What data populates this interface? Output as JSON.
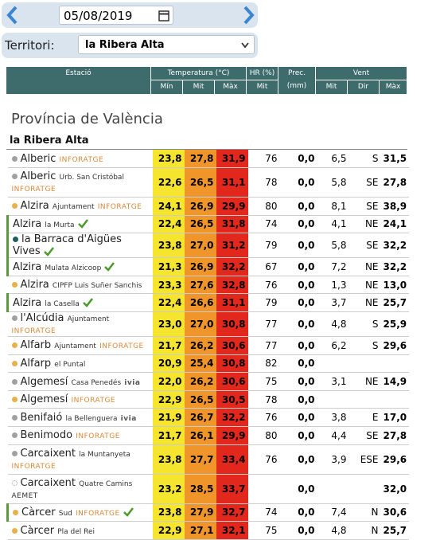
{
  "toolbar": {
    "date": "05/08/2019",
    "territory_label": "Territori:",
    "territory": "la Ribera Alta"
  },
  "table": {
    "headers": {
      "station": "Estació",
      "temperature": "Temperatura (°C)",
      "humidity": "HR (%)",
      "precipitation": "Prec. (mm)",
      "wind": "Vent"
    },
    "subheaders": {
      "temp_min": "Mín",
      "temp_mid": "Mit",
      "temp_max": "Màx",
      "hr_mid": "Mit",
      "wind_mid": "Mit",
      "wind_dir": "Dir",
      "wind_max": "Màx"
    },
    "province": "Província de València",
    "region": "la Ribera Alta",
    "rows": [
      {
        "name": "Alberic",
        "sub": null,
        "tag": "INFORATGE",
        "min": "23,8",
        "mid": "27,8",
        "max": "31,9",
        "hr": "76",
        "prec": "0,0",
        "wind": "6,5",
        "dir": "S",
        "gust": "31,5",
        "dot": "#a0a0a0",
        "verified": false,
        "tall": false
      },
      {
        "name": "Alberic",
        "sub": "Urb. San Cristóbal",
        "tag": "INFORATGE",
        "min": "22,6",
        "mid": "26,5",
        "max": "31,1",
        "hr": "78",
        "prec": "0,0",
        "wind": "5,8",
        "dir": "SE",
        "gust": "27,8",
        "dot": "#a0a0a0",
        "verified": false,
        "tall": true
      },
      {
        "name": "Alzira",
        "sub": "Ajuntament",
        "tag": "INFORATGE",
        "min": "24,1",
        "mid": "26,9",
        "max": "29,9",
        "hr": "80",
        "prec": "0,0",
        "wind": "8,1",
        "dir": "SE",
        "gust": "38,9",
        "dot": "#e8b04a",
        "verified": false,
        "tall": false
      },
      {
        "name": "Alzira",
        "sub": "la Murta",
        "tag": null,
        "min": "22,4",
        "mid": "26,5",
        "max": "31,8",
        "hr": "74",
        "prec": "0,0",
        "wind": "4,1",
        "dir": "NE",
        "gust": "24,1",
        "dot": null,
        "verified": true,
        "tall": false
      },
      {
        "name": "la Barraca d'Aigües Vives",
        "sub": null,
        "tag": null,
        "min": "23,8",
        "mid": "27,0",
        "max": "31,2",
        "hr": "79",
        "prec": "0,0",
        "wind": "5,8",
        "dir": "SE",
        "gust": "32,2",
        "dot": "#1f5f5f",
        "verified": true,
        "tall": false
      },
      {
        "name": "Alzira",
        "sub": "Mulata Alzicoop",
        "tag": null,
        "min": "21,3",
        "mid": "26,9",
        "max": "32,2",
        "hr": "67",
        "prec": "0,0",
        "wind": "7,2",
        "dir": "NE",
        "gust": "32,2",
        "dot": null,
        "verified": true,
        "tall": false
      },
      {
        "name": "Alzira",
        "sub": "CIPFP Luis Suñer Sanchis",
        "tag": null,
        "min": "23,3",
        "mid": "27,6",
        "max": "32,8",
        "hr": "76",
        "prec": "0,0",
        "wind": "1,3",
        "dir": "NE",
        "gust": "13,0",
        "dot": "#e8b04a",
        "verified": false,
        "tall": false
      },
      {
        "name": "Alzira",
        "sub": "la Casella",
        "tag": null,
        "min": "22,4",
        "mid": "26,6",
        "max": "31,1",
        "hr": "79",
        "prec": "0,0",
        "wind": "3,7",
        "dir": "NE",
        "gust": "25,7",
        "dot": null,
        "verified": true,
        "tall": false
      },
      {
        "name": "l'Alcúdia",
        "sub": "Ajuntament",
        "tag": "INFORATGE",
        "min": "23,0",
        "mid": "27,0",
        "max": "30,8",
        "hr": "77",
        "prec": "0,0",
        "wind": "4,8",
        "dir": "S",
        "gust": "25,9",
        "dot": "#a0a0a0",
        "verified": false,
        "tall": false
      },
      {
        "name": "Alfarb",
        "sub": "Ajuntament",
        "tag": "INFORATGE",
        "min": "21,7",
        "mid": "26,2",
        "max": "30,6",
        "hr": "77",
        "prec": "0,0",
        "wind": "6,2",
        "dir": "S",
        "gust": "29,6",
        "dot": "#e8b04a",
        "verified": false,
        "tall": false
      },
      {
        "name": "Alfarp",
        "sub": "el Puntal",
        "tag": null,
        "min": "20,9",
        "mid": "25,4",
        "max": "30,8",
        "hr": "82",
        "prec": "0,0",
        "wind": null,
        "dir": null,
        "gust": null,
        "dot": "#e8b04a",
        "verified": false,
        "tall": false
      },
      {
        "name": "Algemesí",
        "sub": "Casa Penedés",
        "tag": "ivia",
        "min": "22,0",
        "mid": "26,2",
        "max": "30,6",
        "hr": "75",
        "prec": "0,0",
        "wind": "3,1",
        "dir": "NE",
        "gust": "14,9",
        "dot": "#a0a0a0",
        "verified": false,
        "tall": false
      },
      {
        "name": "Algemesí",
        "sub": null,
        "tag": "INFORATGE",
        "min": "22,9",
        "mid": "26,5",
        "max": "30,5",
        "hr": "78",
        "prec": "0,0",
        "wind": null,
        "dir": null,
        "gust": null,
        "dot": "#e8b04a",
        "verified": false,
        "tall": false
      },
      {
        "name": "Benifaió",
        "sub": "la Bellenguera",
        "tag": "ivia",
        "min": "21,9",
        "mid": "26,7",
        "max": "32,2",
        "hr": "76",
        "prec": "0,0",
        "wind": "3,8",
        "dir": "E",
        "gust": "17,0",
        "dot": "#a0a0a0",
        "verified": false,
        "tall": false
      },
      {
        "name": "Benimodo",
        "sub": null,
        "tag": "INFORATGE",
        "min": "21,7",
        "mid": "26,1",
        "max": "29,9",
        "hr": "80",
        "prec": "0,0",
        "wind": "4,4",
        "dir": "SE",
        "gust": "27,8",
        "dot": "#a0a0a0",
        "verified": false,
        "tall": false
      },
      {
        "name": "Carcaixent",
        "sub": "la Muntanyeta",
        "tag": "INFORATGE",
        "min": "23,8",
        "mid": "27,7",
        "max": "33,4",
        "hr": "76",
        "prec": "0,0",
        "wind": "3,9",
        "dir": "ESE",
        "gust": "29,6",
        "dot": "#a0a0a0",
        "verified": false,
        "tall": true
      },
      {
        "name": "Carcaixent",
        "sub": "Quatre Camins",
        "tag": "AEMET",
        "min": "23,2",
        "mid": "28,5",
        "max": "33,7",
        "hr": null,
        "prec": "0,0",
        "wind": null,
        "dir": null,
        "gust": "32,0",
        "dot": "#ffffff",
        "verified": false,
        "tall": true
      },
      {
        "name": "Càrcer",
        "sub": "Sud",
        "tag": "INFORATGE",
        "min": "23,8",
        "mid": "27,9",
        "max": "32,7",
        "hr": "74",
        "prec": "0,0",
        "wind": "7,4",
        "dir": "N",
        "gust": "30,6",
        "dot": "#e8b04a",
        "verified": true,
        "tall": false
      },
      {
        "name": "Càrcer",
        "sub": "Pla del Rei",
        "tag": null,
        "min": "22,9",
        "mid": "27,1",
        "max": "32,1",
        "hr": "75",
        "prec": "0,0",
        "wind": "4,8",
        "dir": "N",
        "gust": "25,7",
        "dot": "#e8b04a",
        "verified": false,
        "tall": false
      }
    ]
  }
}
